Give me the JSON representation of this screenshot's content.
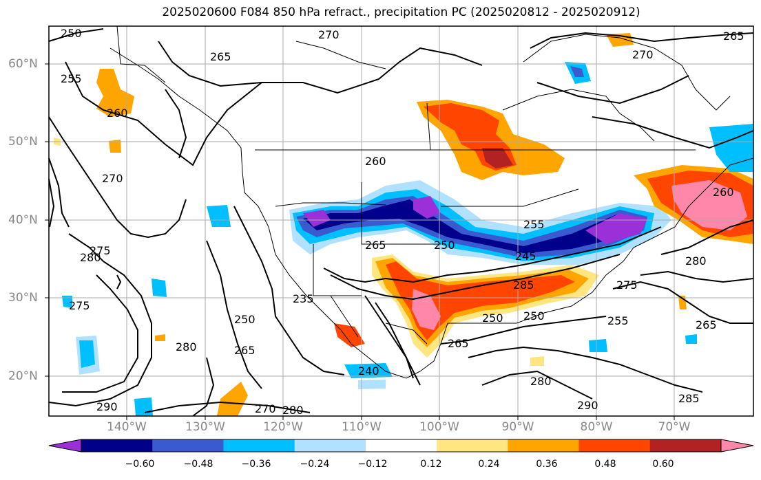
{
  "title": "2025020600 F084 850 hPa refract., precipitation PC (2025020812 - 2025020912)",
  "lat_labels": [
    "60°N",
    "50°N",
    "40°N",
    "30°N",
    "20°N"
  ],
  "lon_labels": [
    "140°W",
    "130°W",
    "120°W",
    "110°W",
    "100°W",
    "90°W",
    "80°W",
    "70°W"
  ],
  "colorbar": {
    "ticks": [
      "−0.60",
      "−0.48",
      "−0.36",
      "−0.24",
      "−0.12",
      "0.12",
      "0.24",
      "0.36",
      "0.48",
      "0.60"
    ],
    "colors": [
      "#9b30d9",
      "#00008b",
      "#3a5bd0",
      "#00bfff",
      "#b0e2ff",
      "#ffffff",
      "#ffe680",
      "#ffa500",
      "#ff4500",
      "#b22222",
      "#ff88aa"
    ]
  },
  "contour_labels": [
    "250",
    "270",
    "265",
    "255",
    "260",
    "270",
    "265",
    "270",
    "275",
    "280",
    "260",
    "255",
    "250",
    "265",
    "240",
    "245",
    "250",
    "235",
    "250",
    "265",
    "280",
    "275",
    "280",
    "290",
    "285",
    "270",
    "280",
    "250",
    "265",
    "255",
    "260",
    "280",
    "275",
    "285",
    "290",
    "265"
  ]
}
